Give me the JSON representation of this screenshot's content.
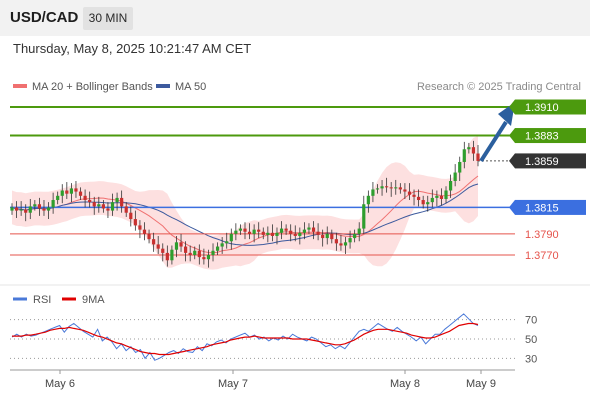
{
  "header": {
    "pair": "USD/CAD",
    "timeframe": "30 MIN"
  },
  "datetime": "Thursday, May 8, 2025 10:21:47 AM CET",
  "legend": {
    "ma20": "MA 20 + Bollinger Bands",
    "ma50": "MA 50",
    "credit": "Research © 2025 Trading Central"
  },
  "colors": {
    "resistance": "#4c9a0e",
    "support": "#3b6fe0",
    "minor_support": "#e5534b",
    "ma20": "#f07070",
    "ma50": "#3d5a9e",
    "candle_up": "#2e9e2e",
    "candle_down": "#c8302f",
    "arrow": "#2b5f9e",
    "rsi": "#4a79d8",
    "rsi_ma": "#e00000",
    "band_fill": "#fde0e0"
  },
  "chart_data": [
    {
      "type": "candlestick",
      "title": "USD/CAD 30 MIN",
      "x": [
        "May 6",
        "May 7",
        "May 8",
        "May 9"
      ],
      "ylim": [
        1.3745,
        1.392
      ],
      "levels": [
        {
          "value": 1.391,
          "label": "1.3910",
          "kind": "resistance"
        },
        {
          "value": 1.3883,
          "label": "1.3883",
          "kind": "resistance"
        },
        {
          "value": 1.3859,
          "label": "1.3859",
          "kind": "current"
        },
        {
          "value": 1.3815,
          "label": "1.3815",
          "kind": "support"
        },
        {
          "value": 1.379,
          "label": "1.3790",
          "kind": "minor_support"
        },
        {
          "value": 1.377,
          "label": "1.3770",
          "kind": "minor_support"
        }
      ],
      "close_series": [
        1.3815,
        1.3812,
        1.3813,
        1.381,
        1.3816,
        1.3818,
        1.3814,
        1.3812,
        1.3815,
        1.3822,
        1.3826,
        1.3831,
        1.3828,
        1.3833,
        1.383,
        1.3826,
        1.3822,
        1.382,
        1.3816,
        1.3818,
        1.3814,
        1.3812,
        1.382,
        1.3824,
        1.3816,
        1.381,
        1.3804,
        1.3798,
        1.3794,
        1.379,
        1.3785,
        1.378,
        1.3776,
        1.3772,
        1.3765,
        1.3775,
        1.3782,
        1.3778,
        1.3772,
        1.377,
        1.3774,
        1.3768,
        1.3766,
        1.377,
        1.3774,
        1.3778,
        1.3781,
        1.3783,
        1.379,
        1.3793,
        1.3795,
        1.3792,
        1.379,
        1.3794,
        1.3792,
        1.3789,
        1.3791,
        1.3788,
        1.3791,
        1.3795,
        1.3793,
        1.379,
        1.3788,
        1.3791,
        1.3794,
        1.3796,
        1.3792,
        1.3789,
        1.3786,
        1.379,
        1.3785,
        1.3781,
        1.3779,
        1.3782,
        1.3786,
        1.379,
        1.3795,
        1.3818,
        1.3826,
        1.3832,
        1.3833,
        1.3835,
        1.3834,
        1.3833,
        1.3834,
        1.3832,
        1.383,
        1.3827,
        1.3825,
        1.3822,
        1.3818,
        1.382,
        1.3824,
        1.3826,
        1.3823,
        1.3831,
        1.384,
        1.3848,
        1.3858,
        1.387,
        1.3872,
        1.3866,
        1.3859
      ],
      "ma20_note": "MA 20 + Bollinger Bands",
      "ma50_note": "MA 50"
    },
    {
      "type": "line",
      "title": "RSI",
      "series": [
        {
          "name": "RSI",
          "values": [
            52,
            55,
            52,
            55,
            53,
            54,
            56,
            58,
            60,
            62,
            64,
            57,
            63,
            66,
            62,
            58,
            55,
            52,
            60,
            48,
            52,
            47,
            40,
            45,
            38,
            42,
            36,
            39,
            30,
            36,
            28,
            30,
            33,
            36,
            38,
            35,
            40,
            37,
            36,
            42,
            38,
            45,
            43,
            47,
            49,
            46,
            50,
            52,
            54,
            56,
            52,
            54,
            50,
            52,
            48,
            51,
            49,
            53,
            50,
            55,
            52,
            50,
            48,
            52,
            50,
            46,
            42,
            44,
            40,
            43,
            40,
            46,
            52,
            58,
            60,
            58,
            62,
            66,
            63,
            60,
            58,
            62,
            58,
            55,
            52,
            48,
            52,
            45,
            50,
            55,
            55,
            60,
            64,
            68,
            72,
            76,
            71,
            66,
            64
          ]
        },
        {
          "name": "9MA",
          "values": [
            53,
            53,
            53,
            54,
            54,
            55,
            56,
            57,
            59,
            60,
            61,
            61,
            62,
            61,
            60,
            59,
            57,
            55,
            53,
            52,
            50,
            48,
            46,
            45,
            43,
            41,
            39,
            37,
            36,
            35,
            35,
            34,
            34,
            34,
            35,
            36,
            37,
            38,
            39,
            40,
            41,
            42,
            44,
            45,
            46,
            47,
            49,
            50,
            51,
            52,
            52,
            53,
            52,
            51,
            51,
            51,
            51,
            51,
            51,
            50,
            50,
            50,
            50,
            49,
            48,
            47,
            46,
            45,
            44,
            44,
            45,
            47,
            49,
            52,
            55,
            57,
            59,
            60,
            60,
            60,
            59,
            58,
            57,
            56,
            54,
            53,
            52,
            51,
            51,
            52,
            54,
            56,
            58,
            61,
            64,
            65,
            66,
            66,
            65
          ]
        }
      ],
      "yticks": [
        "70",
        "50",
        "30"
      ],
      "ylim": [
        20,
        80
      ]
    }
  ],
  "rsi_legend": {
    "rsi": "RSI",
    "ma": "9MA"
  },
  "xaxis": {
    "labels": [
      "May 6",
      "May 7",
      "May 8",
      "May 9"
    ]
  }
}
